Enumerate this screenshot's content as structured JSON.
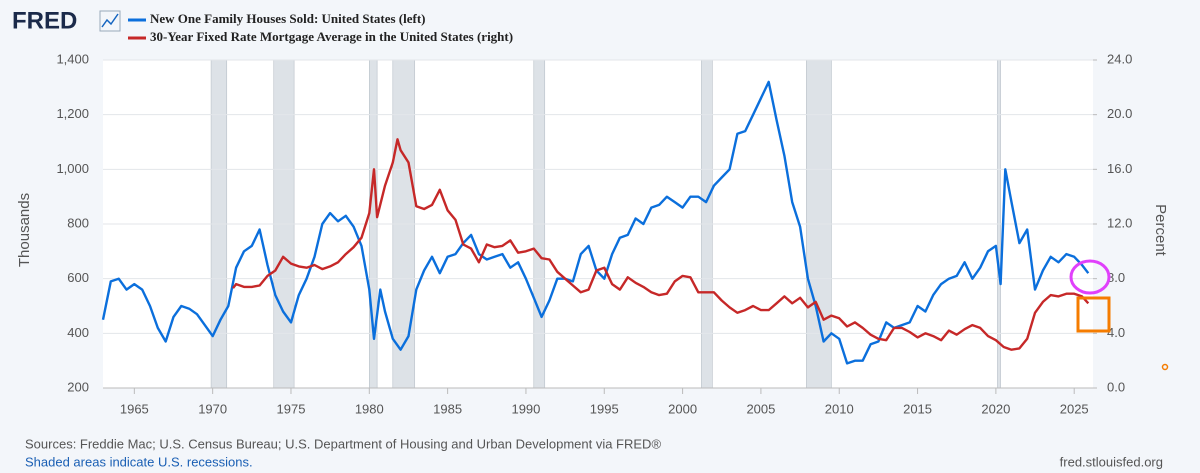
{
  "chart_data": {
    "type": "line",
    "logo": "FRED",
    "ylabel": "Thousands",
    "y2label": "Percent",
    "source": "Sources: Freddie Mac; U.S. Census Bureau; U.S. Department of Housing and Urban Development via FRED®",
    "note": "Shaded areas indicate U.S. recessions.",
    "credit": "fred.stlouisfed.org",
    "xlim": [
      1963,
      2026.2
    ],
    "xticks": [
      1965,
      1970,
      1975,
      1980,
      1985,
      1990,
      1995,
      2000,
      2005,
      2010,
      2015,
      2020,
      2025
    ],
    "ylim": [
      200,
      1400
    ],
    "yticks": [
      200,
      400,
      600,
      800,
      {
        "value": 1000,
        "label": "1,000"
      },
      {
        "value": 1200,
        "label": "1,200"
      },
      {
        "value": 1400,
        "label": "1,400"
      }
    ],
    "y2lim": [
      0,
      24
    ],
    "y2ticks": [
      {
        "value": 0,
        "label": "0.0"
      },
      {
        "value": 4,
        "label": "4.0"
      },
      {
        "value": 8,
        "label": "8.0"
      },
      {
        "value": 12,
        "label": "12.0"
      },
      {
        "value": 16,
        "label": "16.0"
      },
      {
        "value": 20,
        "label": "20.0"
      },
      {
        "value": 24,
        "label": "24.0"
      }
    ],
    "grid": true,
    "recessions": [
      [
        1969.9,
        1970.9
      ],
      [
        1973.9,
        1975.2
      ],
      [
        1980.0,
        1980.5
      ],
      [
        1981.5,
        1982.9
      ],
      [
        1990.5,
        1991.2
      ],
      [
        2001.2,
        2001.9
      ],
      [
        2007.9,
        2009.5
      ],
      [
        2020.1,
        2020.3
      ]
    ],
    "series": [
      {
        "name": "New One Family Houses Sold: United States (left)",
        "color": "#0b6fdc",
        "axis": "y",
        "x": [
          1963,
          1963.5,
          1964,
          1964.5,
          1965,
          1965.5,
          1966,
          1966.5,
          1967,
          1967.5,
          1968,
          1968.5,
          1969,
          1969.5,
          1970,
          1970.5,
          1971,
          1971.5,
          1972,
          1972.5,
          1973,
          1973.5,
          1974,
          1974.5,
          1975,
          1975.5,
          1976,
          1976.5,
          1977,
          1977.5,
          1978,
          1978.5,
          1979,
          1979.5,
          1980,
          1980.3,
          1980.7,
          1981,
          1981.5,
          1982,
          1982.5,
          1983,
          1983.5,
          1984,
          1984.5,
          1985,
          1985.5,
          1986,
          1986.5,
          1987,
          1987.5,
          1988,
          1988.5,
          1989,
          1989.5,
          1990,
          1990.5,
          1991,
          1991.5,
          1992,
          1992.5,
          1993,
          1993.5,
          1994,
          1994.5,
          1995,
          1995.5,
          1996,
          1996.5,
          1997,
          1997.5,
          1998,
          1998.5,
          1999,
          1999.5,
          2000,
          2000.5,
          2001,
          2001.5,
          2002,
          2002.5,
          2003,
          2003.5,
          2004,
          2004.5,
          2005,
          2005.5,
          2006,
          2006.5,
          2007,
          2007.5,
          2008,
          2008.5,
          2009,
          2009.5,
          2010,
          2010.5,
          2011,
          2011.5,
          2012,
          2012.5,
          2013,
          2013.5,
          2014,
          2014.5,
          2015,
          2015.5,
          2016,
          2016.5,
          2017,
          2017.5,
          2018,
          2018.5,
          2019,
          2019.5,
          2020,
          2020.3,
          2020.6,
          2021,
          2021.5,
          2022,
          2022.5,
          2023,
          2023.5,
          2024,
          2024.5,
          2025,
          2025.5,
          2025.9
        ],
        "values": [
          450,
          590,
          600,
          560,
          580,
          560,
          500,
          420,
          370,
          460,
          500,
          490,
          470,
          430,
          390,
          450,
          500,
          640,
          700,
          720,
          780,
          650,
          540,
          480,
          440,
          540,
          600,
          680,
          800,
          840,
          810,
          830,
          790,
          720,
          560,
          380,
          560,
          480,
          380,
          340,
          390,
          560,
          630,
          680,
          620,
          680,
          690,
          730,
          760,
          690,
          670,
          680,
          690,
          640,
          660,
          600,
          530,
          460,
          520,
          600,
          600,
          590,
          690,
          720,
          630,
          600,
          690,
          750,
          760,
          820,
          800,
          860,
          870,
          900,
          880,
          860,
          900,
          900,
          880,
          940,
          970,
          1000,
          1130,
          1140,
          1200,
          1260,
          1320,
          1180,
          1050,
          880,
          790,
          600,
          500,
          370,
          400,
          380,
          290,
          300,
          300,
          360,
          370,
          440,
          420,
          430,
          440,
          500,
          480,
          540,
          580,
          600,
          610,
          660,
          600,
          640,
          700,
          720,
          580,
          1000,
          880,
          730,
          780,
          560,
          630,
          680,
          660,
          690,
          680,
          650,
          620
        ]
      },
      {
        "name": "30-Year Fixed Rate Mortgage Average in the United States (right)",
        "color": "#c62828",
        "axis": "y2",
        "x": [
          1971.3,
          1971.5,
          1972,
          1972.5,
          1973,
          1973.5,
          1974,
          1974.5,
          1975,
          1975.5,
          1976,
          1976.5,
          1977,
          1977.5,
          1978,
          1978.5,
          1979,
          1979.5,
          1980,
          1980.3,
          1980.5,
          1981,
          1981.5,
          1981.8,
          1982,
          1982.5,
          1983,
          1983.5,
          1984,
          1984.5,
          1985,
          1985.5,
          1986,
          1986.5,
          1987,
          1987.5,
          1988,
          1988.5,
          1989,
          1989.5,
          1990,
          1990.5,
          1991,
          1991.5,
          1992,
          1992.5,
          1993,
          1993.5,
          1994,
          1994.5,
          1995,
          1995.5,
          1996,
          1996.5,
          1997,
          1997.5,
          1998,
          1998.5,
          1999,
          1999.5,
          2000,
          2000.5,
          2001,
          2001.5,
          2002,
          2002.5,
          2003,
          2003.5,
          2004,
          2004.5,
          2005,
          2005.5,
          2006,
          2006.5,
          2007,
          2007.5,
          2008,
          2008.5,
          2009,
          2009.5,
          2010,
          2010.5,
          2011,
          2011.5,
          2012,
          2012.5,
          2013,
          2013.5,
          2014,
          2014.5,
          2015,
          2015.5,
          2016,
          2016.5,
          2017,
          2017.5,
          2018,
          2018.5,
          2019,
          2019.5,
          2020,
          2020.5,
          2021,
          2021.5,
          2022,
          2022.5,
          2023,
          2023.5,
          2024,
          2024.5,
          2025,
          2025.5,
          2025.9
        ],
        "values": [
          7.3,
          7.6,
          7.4,
          7.4,
          7.5,
          8.2,
          8.6,
          9.6,
          9.1,
          8.9,
          8.8,
          9.0,
          8.7,
          8.9,
          9.2,
          9.8,
          10.3,
          11.0,
          12.8,
          16.0,
          12.5,
          14.8,
          16.5,
          18.2,
          17.4,
          16.5,
          13.3,
          13.1,
          13.4,
          14.5,
          13.0,
          12.3,
          10.5,
          10.2,
          9.2,
          10.5,
          10.3,
          10.4,
          10.8,
          9.9,
          10.0,
          10.2,
          9.5,
          9.4,
          8.5,
          8.0,
          7.5,
          7.0,
          7.2,
          8.6,
          8.8,
          7.6,
          7.2,
          8.1,
          7.7,
          7.4,
          7.0,
          6.8,
          6.9,
          7.8,
          8.2,
          8.1,
          7.0,
          7.0,
          7.0,
          6.4,
          5.9,
          5.5,
          5.7,
          6.0,
          5.7,
          5.7,
          6.2,
          6.7,
          6.2,
          6.6,
          5.9,
          6.3,
          5.0,
          5.3,
          5.1,
          4.5,
          4.8,
          4.4,
          3.9,
          3.6,
          3.5,
          4.4,
          4.4,
          4.1,
          3.7,
          4.0,
          3.8,
          3.5,
          4.2,
          3.9,
          4.3,
          4.6,
          4.4,
          3.8,
          3.5,
          3.0,
          2.8,
          2.9,
          3.6,
          5.5,
          6.3,
          6.8,
          6.7,
          6.9,
          6.9,
          6.7,
          6.2
        ]
      }
    ]
  }
}
